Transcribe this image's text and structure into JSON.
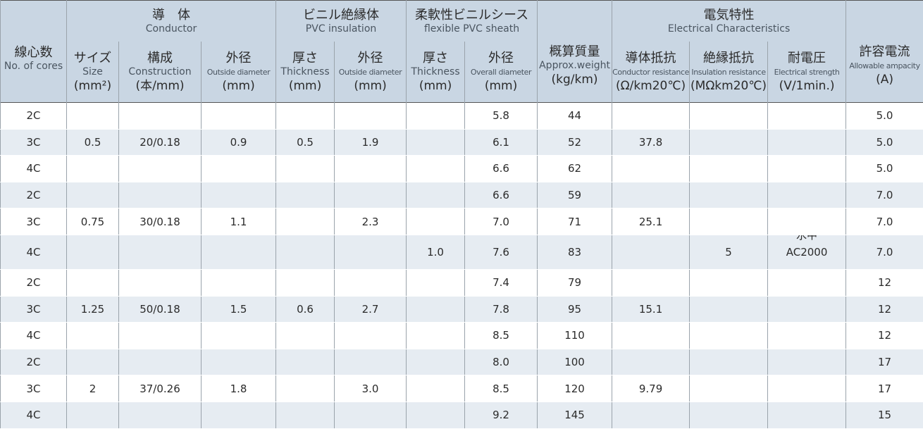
{
  "header": {
    "items": [
      {
        "jp": "線心数",
        "en": "No. of cores"
      },
      {
        "jp": "導　体",
        "en": "Conductor",
        "columns": [
          {
            "jp": "サイズ",
            "en": "Size",
            "unit": "(mm²)"
          },
          {
            "jp": "構成",
            "en": "Construction",
            "unit": "(本/mm)"
          },
          {
            "jp": "外径",
            "en": "Outside diameter",
            "unit": "(mm)"
          }
        ]
      },
      {
        "jp": "ビニル絶縁体",
        "en": "PVC insulation",
        "columns": [
          {
            "jp": "厚さ",
            "en": "Thickness",
            "unit": "(mm)"
          },
          {
            "jp": "外径",
            "en": "Outside diameter",
            "unit": "(mm)"
          }
        ]
      },
      {
        "jp": "柔軟性ビニルシース",
        "en": "flexible PVC sheath",
        "columns": [
          {
            "jp": "厚さ",
            "en": "Thickness",
            "unit": "(mm)"
          },
          {
            "jp": "外径",
            "en": "Overall diameter",
            "unit": "(mm)"
          }
        ]
      },
      {
        "jp": "概算質量",
        "en": "Approx.weight",
        "unit": "(kg/km)"
      },
      {
        "jp": "電気特性",
        "en": "Electrical Characteristics",
        "columns": [
          {
            "jp": "導体抵抗",
            "en": "Conductor resistance",
            "unit": "(Ω/km20℃)"
          },
          {
            "jp": "絶縁抵抗",
            "en": "Insulation resistance",
            "unit": "(MΩkm20℃)"
          },
          {
            "jp": "耐電圧",
            "en": "Electrical strength",
            "unit": "(V/1min.)"
          }
        ]
      },
      {
        "jp": "許容電流",
        "en": "Allowable ampacity",
        "unit": "(A)"
      }
    ]
  },
  "rows": [
    [
      "2C",
      null,
      null,
      null,
      null,
      null,
      null,
      "5.8",
      "44",
      null,
      null,
      null,
      "5.0"
    ],
    [
      "3C",
      "0.5",
      "20/0.18",
      "0.9",
      "0.5",
      "1.9",
      null,
      "6.1",
      "52",
      "37.8",
      null,
      null,
      "5.0"
    ],
    [
      "4C",
      null,
      null,
      null,
      null,
      null,
      null,
      "6.6",
      "62",
      null,
      null,
      null,
      "5.0"
    ],
    [
      "2C",
      null,
      null,
      null,
      null,
      null,
      null,
      "6.6",
      "59",
      null,
      null,
      null,
      "7.0"
    ],
    [
      "3C",
      "0.75",
      "30/0.18",
      "1.1",
      null,
      "2.3",
      null,
      "7.0",
      "71",
      "25.1",
      null,
      null,
      "7.0"
    ],
    [
      "4C",
      null,
      null,
      null,
      null,
      null,
      "1.0",
      "7.6",
      "83",
      null,
      "5",
      [
        "水中",
        "AC2000"
      ],
      "7.0"
    ],
    [
      "2C",
      null,
      null,
      null,
      null,
      null,
      null,
      "7.4",
      "79",
      null,
      null,
      null,
      "12"
    ],
    [
      "3C",
      "1.25",
      "50/0.18",
      "1.5",
      "0.6",
      "2.7",
      null,
      "7.8",
      "95",
      "15.1",
      null,
      null,
      "12"
    ],
    [
      "4C",
      null,
      null,
      null,
      null,
      null,
      null,
      "8.5",
      "110",
      null,
      null,
      null,
      "12"
    ],
    [
      "2C",
      null,
      null,
      null,
      null,
      null,
      null,
      "8.0",
      "100",
      null,
      null,
      null,
      "17"
    ],
    [
      "3C",
      "2",
      "37/0.26",
      "1.8",
      null,
      "3.0",
      null,
      "8.5",
      "120",
      "9.79",
      null,
      null,
      "17"
    ],
    [
      "4C",
      null,
      null,
      null,
      null,
      null,
      null,
      "9.2",
      "145",
      null,
      null,
      null,
      "15"
    ]
  ]
}
